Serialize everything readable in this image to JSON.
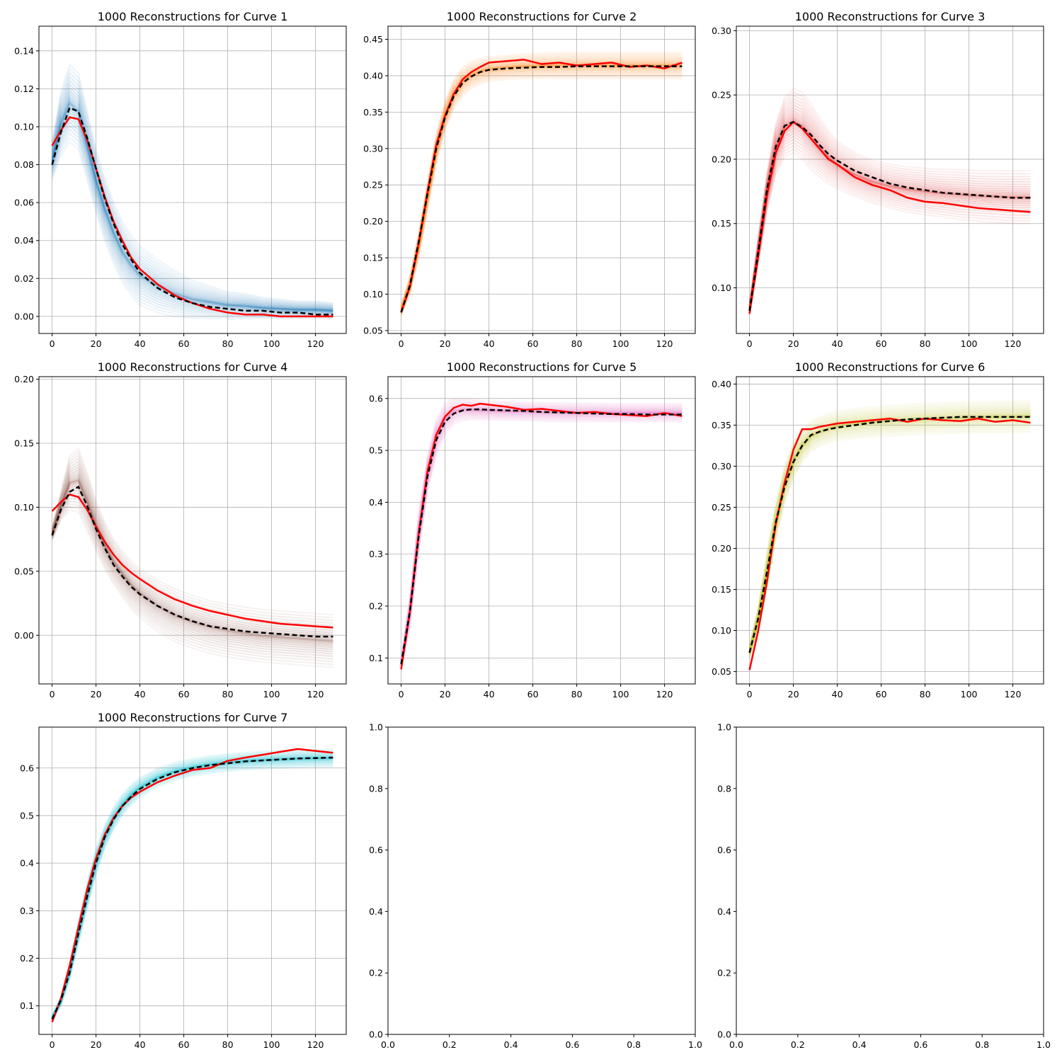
{
  "figure": {
    "background": "#ffffff"
  },
  "colors": {
    "truth": "#ff0000",
    "mean": "#000000",
    "grid": "#b0b0b0",
    "axes": "#000000"
  },
  "chart_data": [
    {
      "type": "line",
      "title": "1000 Reconstructions for Curve 1",
      "band_color": "#1f77b4",
      "xlim": [
        -6,
        134
      ],
      "ylim": [
        -0.009,
        0.153
      ],
      "xticks": [
        0,
        20,
        40,
        60,
        80,
        100,
        120
      ],
      "yticks": [
        0.0,
        0.02,
        0.04,
        0.06,
        0.08,
        0.1,
        0.12,
        0.14
      ],
      "ytick_labels": [
        "0.00",
        "0.02",
        "0.04",
        "0.06",
        "0.08",
        "0.10",
        "0.12",
        "0.14"
      ],
      "grid": true,
      "x": [
        0,
        4,
        8,
        12,
        16,
        20,
        24,
        28,
        32,
        36,
        40,
        48,
        56,
        64,
        72,
        80,
        88,
        96,
        104,
        112,
        120,
        128
      ],
      "band_upper": [
        0.092,
        0.118,
        0.133,
        0.128,
        0.108,
        0.088,
        0.073,
        0.06,
        0.05,
        0.043,
        0.037,
        0.03,
        0.024,
        0.019,
        0.016,
        0.013,
        0.012,
        0.01,
        0.009,
        0.008,
        0.008,
        0.007
      ],
      "band_lower": [
        0.072,
        0.085,
        0.092,
        0.088,
        0.072,
        0.055,
        0.04,
        0.028,
        0.018,
        0.011,
        0.006,
        0.002,
        0.0,
        -0.001,
        -0.001,
        -0.001,
        -0.001,
        -0.001,
        -0.001,
        -0.001,
        -0.001,
        -0.001
      ],
      "series": [
        {
          "role": "truth",
          "values": [
            0.09,
            0.098,
            0.105,
            0.104,
            0.093,
            0.078,
            0.063,
            0.05,
            0.04,
            0.031,
            0.025,
            0.017,
            0.011,
            0.007,
            0.004,
            0.002,
            0.001,
            0.001,
            0.0,
            0.0,
            0.0,
            0.0
          ]
        },
        {
          "role": "mean",
          "values": [
            0.08,
            0.097,
            0.11,
            0.108,
            0.094,
            0.078,
            0.062,
            0.049,
            0.038,
            0.03,
            0.023,
            0.015,
            0.01,
            0.007,
            0.005,
            0.004,
            0.003,
            0.003,
            0.002,
            0.002,
            0.001,
            0.001
          ]
        }
      ]
    },
    {
      "type": "line",
      "title": "1000 Reconstructions for Curve 2",
      "band_color": "#ff7f0e",
      "xlim": [
        -6,
        134
      ],
      "ylim": [
        0.046,
        0.468
      ],
      "xticks": [
        0,
        20,
        40,
        60,
        80,
        100,
        120
      ],
      "yticks": [
        0.05,
        0.1,
        0.15,
        0.2,
        0.25,
        0.3,
        0.35,
        0.4,
        0.45
      ],
      "ytick_labels": [
        "0.05",
        "0.10",
        "0.15",
        "0.20",
        "0.25",
        "0.30",
        "0.35",
        "0.40",
        "0.45"
      ],
      "grid": true,
      "x": [
        0,
        4,
        8,
        12,
        16,
        20,
        24,
        28,
        32,
        36,
        40,
        48,
        56,
        64,
        72,
        80,
        88,
        96,
        104,
        112,
        120,
        128
      ],
      "band_upper": [
        0.085,
        0.125,
        0.185,
        0.255,
        0.32,
        0.365,
        0.395,
        0.412,
        0.42,
        0.424,
        0.426,
        0.428,
        0.43,
        0.431,
        0.432,
        0.432,
        0.432,
        0.432,
        0.432,
        0.432,
        0.432,
        0.432
      ],
      "band_lower": [
        0.07,
        0.1,
        0.15,
        0.215,
        0.28,
        0.325,
        0.355,
        0.372,
        0.382,
        0.388,
        0.392,
        0.395,
        0.396,
        0.396,
        0.396,
        0.396,
        0.396,
        0.396,
        0.396,
        0.396,
        0.396,
        0.396
      ],
      "series": [
        {
          "role": "truth",
          "values": [
            0.075,
            0.11,
            0.17,
            0.24,
            0.305,
            0.345,
            0.375,
            0.395,
            0.405,
            0.412,
            0.418,
            0.42,
            0.422,
            0.416,
            0.418,
            0.414,
            0.416,
            0.418,
            0.412,
            0.414,
            0.41,
            0.418
          ]
        },
        {
          "role": "mean",
          "values": [
            0.075,
            0.112,
            0.172,
            0.238,
            0.3,
            0.343,
            0.372,
            0.39,
            0.399,
            0.405,
            0.408,
            0.41,
            0.411,
            0.412,
            0.412,
            0.413,
            0.413,
            0.413,
            0.413,
            0.413,
            0.413,
            0.413
          ]
        }
      ]
    },
    {
      "type": "line",
      "title": "1000 Reconstructions for Curve 3",
      "band_color": "#d62728",
      "xlim": [
        -6,
        134
      ],
      "ylim": [
        0.0645,
        0.3035
      ],
      "xticks": [
        0,
        20,
        40,
        60,
        80,
        100,
        120
      ],
      "yticks": [
        0.1,
        0.15,
        0.2,
        0.25,
        0.3
      ],
      "ytick_labels": [
        "0.10",
        "0.15",
        "0.20",
        "0.25",
        "0.30"
      ],
      "grid": true,
      "x": [
        0,
        4,
        8,
        12,
        16,
        20,
        24,
        28,
        32,
        36,
        40,
        48,
        56,
        64,
        72,
        80,
        88,
        96,
        104,
        112,
        120,
        128
      ],
      "band_upper": [
        0.088,
        0.14,
        0.19,
        0.228,
        0.248,
        0.255,
        0.252,
        0.243,
        0.232,
        0.222,
        0.214,
        0.205,
        0.199,
        0.196,
        0.194,
        0.193,
        0.192,
        0.192,
        0.191,
        0.191,
        0.191,
        0.191
      ],
      "band_lower": [
        0.078,
        0.118,
        0.16,
        0.188,
        0.202,
        0.205,
        0.2,
        0.192,
        0.186,
        0.181,
        0.177,
        0.171,
        0.166,
        0.162,
        0.159,
        0.157,
        0.155,
        0.153,
        0.152,
        0.151,
        0.15,
        0.15
      ],
      "series": [
        {
          "role": "truth",
          "values": [
            0.08,
            0.125,
            0.172,
            0.205,
            0.222,
            0.229,
            0.224,
            0.216,
            0.208,
            0.2,
            0.196,
            0.186,
            0.18,
            0.176,
            0.17,
            0.167,
            0.166,
            0.164,
            0.162,
            0.161,
            0.16,
            0.159
          ]
        },
        {
          "role": "mean",
          "values": [
            0.082,
            0.128,
            0.177,
            0.21,
            0.226,
            0.229,
            0.225,
            0.219,
            0.211,
            0.204,
            0.199,
            0.191,
            0.186,
            0.181,
            0.178,
            0.176,
            0.174,
            0.173,
            0.172,
            0.171,
            0.17,
            0.17
          ]
        }
      ]
    },
    {
      "type": "line",
      "title": "1000 Reconstructions for Curve 4",
      "band_color": "#8c564b",
      "xlim": [
        -6,
        134
      ],
      "ylim": [
        -0.038,
        0.202
      ],
      "xticks": [
        0,
        20,
        40,
        60,
        80,
        100,
        120
      ],
      "yticks": [
        0.0,
        0.05,
        0.1,
        0.15,
        0.2
      ],
      "ytick_labels": [
        "0.00",
        "0.05",
        "0.10",
        "0.15",
        "0.20"
      ],
      "grid": true,
      "x": [
        0,
        4,
        8,
        12,
        16,
        20,
        24,
        28,
        32,
        36,
        40,
        48,
        56,
        64,
        72,
        80,
        88,
        96,
        104,
        112,
        120,
        128
      ],
      "band_upper": [
        0.084,
        0.112,
        0.14,
        0.146,
        0.127,
        0.105,
        0.088,
        0.075,
        0.066,
        0.058,
        0.052,
        0.043,
        0.036,
        0.031,
        0.027,
        0.024,
        0.022,
        0.02,
        0.019,
        0.018,
        0.017,
        0.016
      ],
      "band_lower": [
        0.074,
        0.09,
        0.098,
        0.096,
        0.082,
        0.066,
        0.052,
        0.04,
        0.03,
        0.021,
        0.014,
        0.003,
        -0.005,
        -0.01,
        -0.014,
        -0.017,
        -0.019,
        -0.021,
        -0.022,
        -0.023,
        -0.024,
        -0.025
      ],
      "series": [
        {
          "role": "truth",
          "values": [
            0.097,
            0.104,
            0.11,
            0.108,
            0.098,
            0.085,
            0.073,
            0.063,
            0.055,
            0.049,
            0.044,
            0.035,
            0.028,
            0.023,
            0.019,
            0.016,
            0.013,
            0.011,
            0.009,
            0.008,
            0.007,
            0.006
          ]
        },
        {
          "role": "mean",
          "values": [
            0.078,
            0.098,
            0.112,
            0.116,
            0.101,
            0.083,
            0.068,
            0.055,
            0.046,
            0.038,
            0.032,
            0.023,
            0.016,
            0.011,
            0.007,
            0.005,
            0.003,
            0.002,
            0.001,
            0.0,
            -0.001,
            -0.001
          ]
        }
      ]
    },
    {
      "type": "line",
      "title": "1000 Reconstructions for Curve 5",
      "band_color": "#e377c2",
      "xlim": [
        -6,
        134
      ],
      "ylim": [
        0.05,
        0.642
      ],
      "xticks": [
        0,
        20,
        40,
        60,
        80,
        100,
        120
      ],
      "yticks": [
        0.1,
        0.2,
        0.3,
        0.4,
        0.5,
        0.6
      ],
      "ytick_labels": [
        "0.1",
        "0.2",
        "0.3",
        "0.4",
        "0.5",
        "0.6"
      ],
      "grid": true,
      "x": [
        0,
        4,
        8,
        12,
        16,
        20,
        24,
        28,
        32,
        36,
        40,
        48,
        56,
        64,
        72,
        80,
        88,
        96,
        104,
        112,
        120,
        128
      ],
      "band_upper": [
        0.1,
        0.22,
        0.38,
        0.49,
        0.56,
        0.592,
        0.6,
        0.6,
        0.598,
        0.596,
        0.595,
        0.594,
        0.593,
        0.592,
        0.592,
        0.591,
        0.591,
        0.59,
        0.59,
        0.59,
        0.59,
        0.59
      ],
      "band_lower": [
        0.075,
        0.16,
        0.3,
        0.42,
        0.49,
        0.53,
        0.55,
        0.557,
        0.559,
        0.559,
        0.559,
        0.558,
        0.557,
        0.556,
        0.555,
        0.555,
        0.555,
        0.555,
        0.555,
        0.555,
        0.555,
        0.555
      ],
      "series": [
        {
          "role": "truth",
          "values": [
            0.078,
            0.19,
            0.34,
            0.46,
            0.53,
            0.565,
            0.582,
            0.588,
            0.586,
            0.59,
            0.588,
            0.584,
            0.578,
            0.58,
            0.576,
            0.572,
            0.574,
            0.57,
            0.568,
            0.566,
            0.572,
            0.566
          ]
        },
        {
          "role": "mean",
          "values": [
            0.088,
            0.19,
            0.335,
            0.45,
            0.52,
            0.555,
            0.571,
            0.577,
            0.579,
            0.579,
            0.578,
            0.577,
            0.576,
            0.574,
            0.573,
            0.572,
            0.571,
            0.57,
            0.57,
            0.569,
            0.569,
            0.569
          ]
        }
      ]
    },
    {
      "type": "line",
      "title": "1000 Reconstructions for Curve 6",
      "band_color": "#bcbd22",
      "xlim": [
        -6,
        134
      ],
      "ylim": [
        0.035,
        0.409
      ],
      "xticks": [
        0,
        20,
        40,
        60,
        80,
        100,
        120
      ],
      "yticks": [
        0.05,
        0.1,
        0.15,
        0.2,
        0.25,
        0.3,
        0.35,
        0.4
      ],
      "ytick_labels": [
        "0.05",
        "0.10",
        "0.15",
        "0.20",
        "0.25",
        "0.30",
        "0.35",
        "0.40"
      ],
      "grid": true,
      "x": [
        0,
        4,
        8,
        12,
        16,
        20,
        24,
        28,
        32,
        36,
        40,
        48,
        56,
        64,
        72,
        80,
        88,
        96,
        104,
        112,
        120,
        128
      ],
      "band_upper": [
        0.082,
        0.13,
        0.195,
        0.255,
        0.3,
        0.33,
        0.345,
        0.355,
        0.36,
        0.364,
        0.367,
        0.37,
        0.372,
        0.374,
        0.375,
        0.376,
        0.377,
        0.378,
        0.378,
        0.379,
        0.379,
        0.38
      ],
      "band_lower": [
        0.066,
        0.1,
        0.15,
        0.21,
        0.255,
        0.285,
        0.305,
        0.318,
        0.324,
        0.328,
        0.331,
        0.334,
        0.336,
        0.337,
        0.338,
        0.339,
        0.34,
        0.34,
        0.341,
        0.341,
        0.341,
        0.342
      ],
      "series": [
        {
          "role": "truth",
          "values": [
            0.052,
            0.1,
            0.16,
            0.23,
            0.28,
            0.32,
            0.345,
            0.345,
            0.348,
            0.35,
            0.352,
            0.354,
            0.356,
            0.358,
            0.354,
            0.358,
            0.356,
            0.355,
            0.358,
            0.354,
            0.356,
            0.353
          ]
        },
        {
          "role": "mean",
          "values": [
            0.073,
            0.115,
            0.172,
            0.232,
            0.275,
            0.305,
            0.325,
            0.338,
            0.342,
            0.345,
            0.347,
            0.35,
            0.353,
            0.355,
            0.357,
            0.358,
            0.359,
            0.36,
            0.36,
            0.36,
            0.36,
            0.36
          ]
        }
      ]
    },
    {
      "type": "line",
      "title": "1000 Reconstructions for Curve 7",
      "band_color": "#17becf",
      "xlim": [
        -6,
        134
      ],
      "ylim": [
        0.04,
        0.686
      ],
      "xticks": [
        0,
        20,
        40,
        60,
        80,
        100,
        120
      ],
      "yticks": [
        0.1,
        0.2,
        0.3,
        0.4,
        0.5,
        0.6
      ],
      "ytick_labels": [
        "0.1",
        "0.2",
        "0.3",
        "0.4",
        "0.5",
        "0.6"
      ],
      "grid": true,
      "x": [
        0,
        4,
        8,
        12,
        16,
        20,
        24,
        28,
        32,
        36,
        40,
        48,
        56,
        64,
        72,
        80,
        88,
        96,
        104,
        112,
        120,
        128
      ],
      "band_upper": [
        0.08,
        0.12,
        0.19,
        0.28,
        0.36,
        0.43,
        0.48,
        0.518,
        0.545,
        0.565,
        0.58,
        0.6,
        0.612,
        0.62,
        0.626,
        0.63,
        0.633,
        0.635,
        0.637,
        0.638,
        0.639,
        0.64
      ],
      "band_lower": [
        0.068,
        0.1,
        0.155,
        0.23,
        0.305,
        0.375,
        0.43,
        0.47,
        0.5,
        0.522,
        0.538,
        0.56,
        0.574,
        0.583,
        0.589,
        0.593,
        0.596,
        0.598,
        0.6,
        0.601,
        0.602,
        0.602
      ],
      "series": [
        {
          "role": "truth",
          "values": [
            0.066,
            0.115,
            0.185,
            0.265,
            0.345,
            0.41,
            0.46,
            0.495,
            0.52,
            0.538,
            0.55,
            0.57,
            0.584,
            0.596,
            0.6,
            0.615,
            0.622,
            0.628,
            0.634,
            0.64,
            0.636,
            0.632
          ]
        },
        {
          "role": "mean",
          "values": [
            0.072,
            0.112,
            0.17,
            0.252,
            0.33,
            0.4,
            0.455,
            0.492,
            0.52,
            0.54,
            0.556,
            0.577,
            0.591,
            0.6,
            0.606,
            0.61,
            0.614,
            0.616,
            0.618,
            0.62,
            0.621,
            0.622
          ]
        }
      ]
    },
    {
      "type": "line",
      "title": "",
      "xlim": [
        0,
        1
      ],
      "ylim": [
        0,
        1
      ],
      "xticks": [
        0.0,
        0.2,
        0.4,
        0.6,
        0.8,
        1.0
      ],
      "xtick_labels": [
        "0.0",
        "0.2",
        "0.4",
        "0.6",
        "0.8",
        "1.0"
      ],
      "yticks": [
        0.0,
        0.2,
        0.4,
        0.6,
        0.8,
        1.0
      ],
      "ytick_labels": [
        "0.0",
        "0.2",
        "0.4",
        "0.6",
        "0.8",
        "1.0"
      ],
      "grid": false,
      "series": []
    },
    {
      "type": "line",
      "title": "",
      "xlim": [
        0,
        1
      ],
      "ylim": [
        0,
        1
      ],
      "xticks": [
        0.0,
        0.2,
        0.4,
        0.6,
        0.8,
        1.0
      ],
      "xtick_labels": [
        "0.0",
        "0.2",
        "0.4",
        "0.6",
        "0.8",
        "1.0"
      ],
      "yticks": [
        0.0,
        0.2,
        0.4,
        0.6,
        0.8,
        1.0
      ],
      "ytick_labels": [
        "0.0",
        "0.2",
        "0.4",
        "0.6",
        "0.8",
        "1.0"
      ],
      "grid": false,
      "series": []
    }
  ]
}
